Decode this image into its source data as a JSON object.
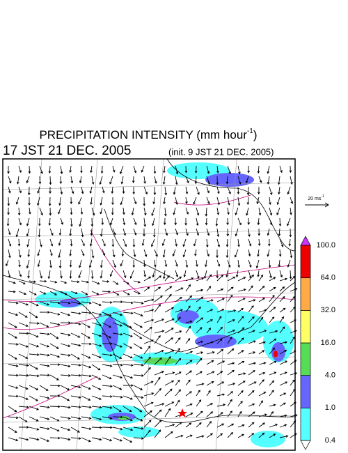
{
  "title": {
    "text": "PRECIPITATION INTENSITY (mm hour",
    "sup": "-1",
    "close": ")"
  },
  "valid_time": "17 JST 21 DEC. 2005",
  "init_time": "(init. 9 JST 21 DEC. 2005)",
  "reference_vector": {
    "text": "20 ms",
    "sup": "-1"
  },
  "colorbar": {
    "labels": [
      "0.4",
      "1.0",
      "4.0",
      "16.0",
      "32.0",
      "64.0",
      "100.0"
    ],
    "colors": [
      "#55ffff",
      "#6666ff",
      "#55dd55",
      "#ffff66",
      "#ffaa44",
      "#ee0000"
    ],
    "under_color": "#ffffff",
    "over_color": "#cc33ff"
  }
}
